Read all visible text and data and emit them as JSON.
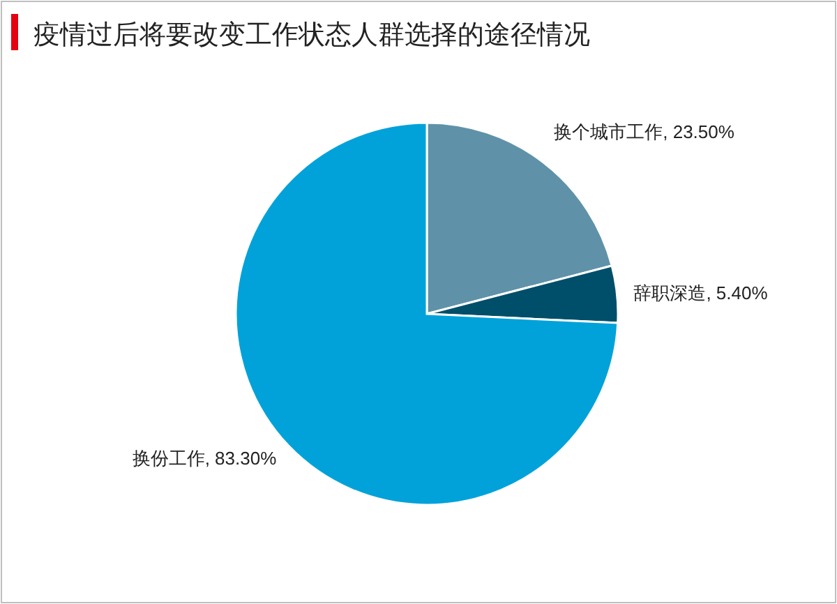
{
  "chart_data": {
    "type": "pie",
    "title": "疫情过后将要改变工作状态人群选择的途径情况",
    "categories": [
      "换个城市工作",
      "辞职深造",
      "换份工作"
    ],
    "values": [
      23.5,
      5.4,
      83.3
    ],
    "value_labels": [
      "23.50%",
      "5.40%",
      "83.30%"
    ],
    "colors": [
      "#5f92a8",
      "#004f6a",
      "#00a2d9"
    ]
  }
}
